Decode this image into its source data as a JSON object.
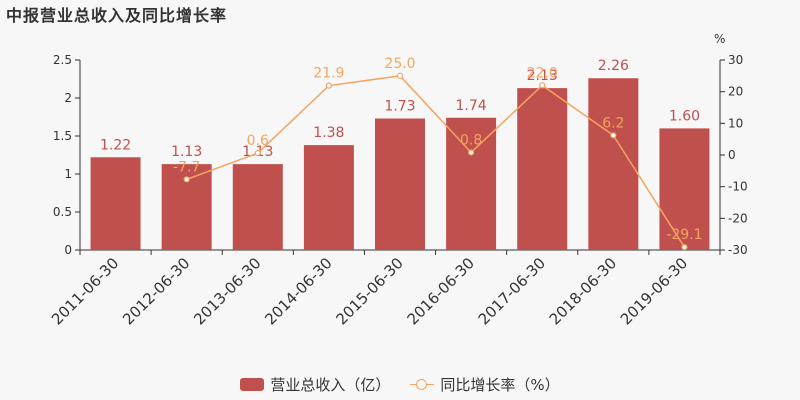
{
  "chart_data": {
    "type": "bar",
    "title": "中报营业总收入及同比增长率",
    "categories": [
      "2011-06-30",
      "2012-06-30",
      "2013-06-30",
      "2014-06-30",
      "2015-06-30",
      "2016-06-30",
      "2017-06-30",
      "2018-06-30",
      "2019-06-30"
    ],
    "series": [
      {
        "name": "营业总收入（亿）",
        "type": "bar",
        "axis": "left",
        "color": "#c0504d",
        "values": [
          1.22,
          1.13,
          1.13,
          1.38,
          1.73,
          1.74,
          2.13,
          2.26,
          1.6
        ],
        "labels": [
          "1.22",
          "1.13",
          "1.13",
          "1.38",
          "1.73",
          "1.74",
          "2.13",
          "2.26",
          "1.60"
        ]
      },
      {
        "name": "同比增长率（%）",
        "type": "line",
        "axis": "right",
        "color": "#f4a460",
        "values": [
          null,
          -7.7,
          0.6,
          21.9,
          25.0,
          0.8,
          22.0,
          6.2,
          -29.1
        ],
        "labels": [
          "",
          "-7.7",
          "0.6",
          "21.9",
          "25.0",
          "0.8",
          "22.0",
          "6.2",
          "-29.1"
        ]
      }
    ],
    "y_left": {
      "range": [
        0,
        2.5
      ],
      "ticks": [
        "0",
        "0.5",
        "1",
        "1.5",
        "2",
        "2.5"
      ]
    },
    "y_right": {
      "label": "%",
      "range": [
        -30,
        30
      ],
      "ticks": [
        "-30",
        "-20",
        "-10",
        "0",
        "10",
        "20",
        "30"
      ]
    },
    "grid": false,
    "legend_position": "bottom"
  }
}
